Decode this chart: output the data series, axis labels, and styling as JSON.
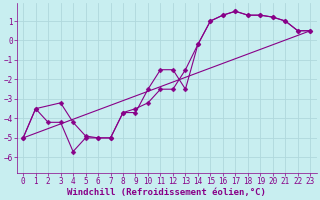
{
  "xlabel": "Windchill (Refroidissement éolien,°C)",
  "bg_color": "#c8eef0",
  "grid_color": "#b0d8dc",
  "line_color": "#880088",
  "xlim": [
    -0.5,
    23.5
  ],
  "ylim": [
    -6.8,
    1.9
  ],
  "xticks": [
    0,
    1,
    2,
    3,
    4,
    5,
    6,
    7,
    8,
    9,
    10,
    11,
    12,
    13,
    14,
    15,
    16,
    17,
    18,
    19,
    20,
    21,
    22,
    23
  ],
  "yticks": [
    -6,
    -5,
    -4,
    -3,
    -2,
    -1,
    0,
    1
  ],
  "line1_x": [
    0,
    1,
    2,
    3,
    4,
    5,
    6,
    7,
    8,
    9,
    10,
    11,
    12,
    13,
    14,
    15,
    16,
    17,
    18,
    19,
    20,
    21,
    22,
    23
  ],
  "line1_y": [
    -5.0,
    -3.5,
    -4.2,
    -4.2,
    -5.7,
    -5.0,
    -5.0,
    -5.0,
    -3.7,
    -3.7,
    -2.5,
    -1.5,
    -1.5,
    -2.5,
    -0.2,
    1.0,
    1.3,
    1.5,
    1.3,
    1.3,
    1.2,
    1.0,
    0.5,
    0.5
  ],
  "line2_x": [
    0,
    1,
    3,
    4,
    5,
    6,
    7,
    8,
    9,
    10,
    11,
    12,
    13,
    14,
    15,
    16,
    17,
    18,
    19,
    20,
    21,
    22,
    23
  ],
  "line2_y": [
    -5.0,
    -3.5,
    -3.2,
    -4.2,
    -4.9,
    -5.0,
    -5.0,
    -3.7,
    -3.5,
    -3.2,
    -2.5,
    -2.5,
    -1.5,
    -0.2,
    1.0,
    1.3,
    1.5,
    1.3,
    1.3,
    1.2,
    1.0,
    0.5,
    0.5
  ],
  "line3_x": [
    0,
    23
  ],
  "line3_y": [
    -5.0,
    0.5
  ],
  "marker_size": 2.5,
  "linewidth": 0.8,
  "font_family": "monospace",
  "tick_fontsize": 5.5,
  "label_fontsize": 6.5
}
